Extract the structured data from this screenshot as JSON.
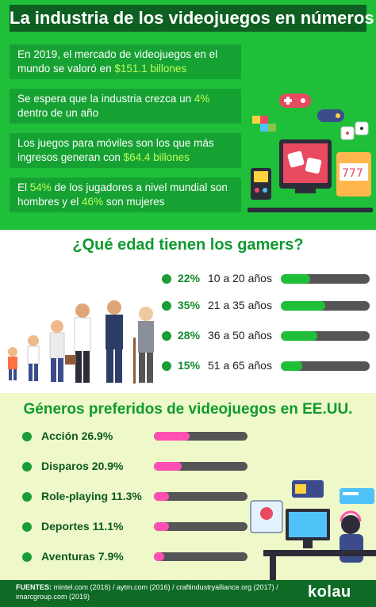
{
  "header": {
    "title": "La industria de los videojuegos en números"
  },
  "stats": [
    {
      "pre": "En 2019, el mercado de videojuegos en el mundo se valoró en ",
      "hl": "$151.1 billones",
      "post": ""
    },
    {
      "pre": "Se espera que la industria crezca un ",
      "hl": "4%",
      "post": " dentro de un año"
    },
    {
      "pre": "Los juegos para móviles son los que más ingresos generan con ",
      "hl": "$64.4 billones",
      "post": ""
    },
    {
      "pre": "El ",
      "hl": "54%",
      "mid": " de los jugadores a nivel mundial son hombres y el ",
      "hl2": "46%",
      "post": " son mujeres"
    }
  ],
  "ages": {
    "title": "¿Qué edad tienen los gamers?",
    "rows": [
      {
        "pct": "22%",
        "range": "10 a 20 años",
        "value": 0.22
      },
      {
        "pct": "35%",
        "range": "21 a 35 años",
        "value": 0.35
      },
      {
        "pct": "28%",
        "range": "36 a 50 años",
        "value": 0.28
      },
      {
        "pct": "15%",
        "range": "51 a 65 años",
        "value": 0.15
      }
    ]
  },
  "genres": {
    "title": "Géneros preferidos de videojuegos en EE.UU.",
    "rows": [
      {
        "label": "Acción 26.9%",
        "value": 26.9
      },
      {
        "label": "Disparos 20.9%",
        "value": 20.9
      },
      {
        "label": "Role-playing 11.3%",
        "value": 11.3
      },
      {
        "label": "Deportes 11.1%",
        "value": 11.1
      },
      {
        "label": "Aventuras 7.9%",
        "value": 7.9
      }
    ]
  },
  "footer": {
    "sources_label": "FUENTES:",
    "sources_text": "mintel.com (2016) / aytm.com (2016) / craftindustryalliance.org (2017) / imarcgroup.com (2019)",
    "logo": "kolau"
  },
  "colors": {
    "green": "#1fbf3a",
    "dark_green": "#0e5f22",
    "pink": "#ff4fb3",
    "highlight": "#b9ff5a"
  }
}
